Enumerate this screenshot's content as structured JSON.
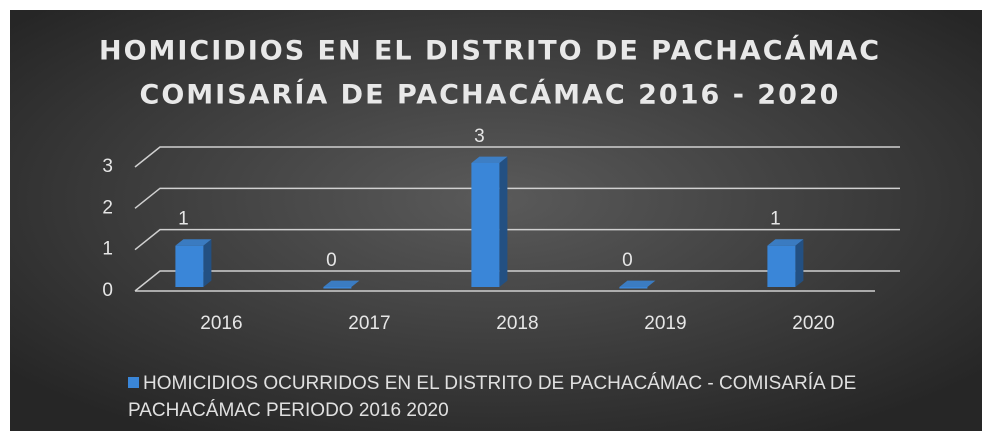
{
  "chart_data": {
    "type": "bar3d",
    "title": [
      "HOMICIDIOS EN EL DISTRITO DE PACHACÁMAC",
      "COMISARÍA DE PACHACÁMAC 2016 - 2020"
    ],
    "categories": [
      "2016",
      "2017",
      "2018",
      "2019",
      "2020"
    ],
    "series": [
      {
        "name": "HOMICIDIOS OCURRIDOS EN EL DISTRITO DE PACHACÁMAC - COMISARÍA DE PACHACÁMAC PERIODO 2016 2020",
        "color": "#3a86d8",
        "values": [
          1,
          0,
          3,
          0,
          1
        ]
      }
    ],
    "ylim": [
      0,
      3
    ],
    "yticks": [
      0,
      1,
      2,
      3
    ],
    "grid": true,
    "legend": "bottom"
  }
}
